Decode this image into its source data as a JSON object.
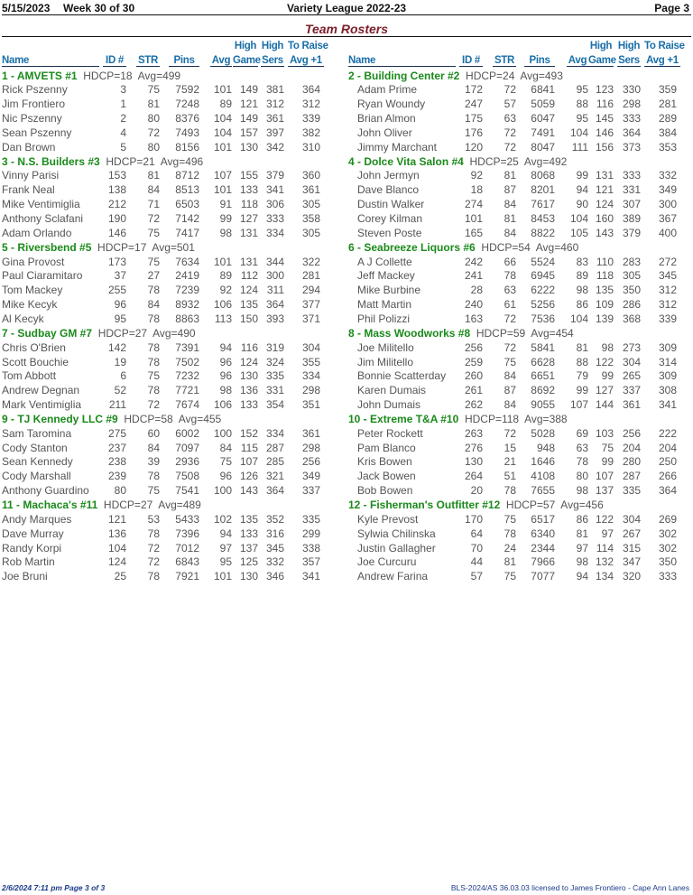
{
  "header": {
    "date": "5/15/2023",
    "week": "Week 30 of 30",
    "league": "Variety League 2022-23",
    "page": "Page 3"
  },
  "title": "Team Rosters",
  "columns": {
    "name": "Name",
    "id": "ID #",
    "str": "STR",
    "pins": "Pins",
    "avg": "Avg",
    "high1": "High",
    "game": "Game",
    "high2": "High",
    "sers": "Sers",
    "raise1": "To Raise",
    "raise2": "Avg +1"
  },
  "left_teams": [
    {
      "name": "1 - AMVETS #1",
      "info": "HDCP=18  Avg=499",
      "players": [
        [
          "Rick Pszenny",
          "3",
          "75",
          "7592",
          "101",
          "149",
          "381",
          "364"
        ],
        [
          "Jim Frontiero",
          "1",
          "81",
          "7248",
          "89",
          "121",
          "312",
          "312"
        ],
        [
          "Nic Pszenny",
          "2",
          "80",
          "8376",
          "104",
          "149",
          "361",
          "339"
        ],
        [
          "Sean Pszenny",
          "4",
          "72",
          "7493",
          "104",
          "157",
          "397",
          "382"
        ],
        [
          "Dan Brown",
          "5",
          "80",
          "8156",
          "101",
          "130",
          "342",
          "310"
        ]
      ]
    },
    {
      "name": "3 - N.S. Builders #3",
      "info": "HDCP=21  Avg=496",
      "players": [
        [
          "Vinny Parisi",
          "153",
          "81",
          "8712",
          "107",
          "155",
          "379",
          "360"
        ],
        [
          "Frank Neal",
          "138",
          "84",
          "8513",
          "101",
          "133",
          "341",
          "361"
        ],
        [
          "Mike Ventimiglia",
          "212",
          "71",
          "6503",
          "91",
          "118",
          "306",
          "305"
        ],
        [
          "Anthony Sclafani",
          "190",
          "72",
          "7142",
          "99",
          "127",
          "333",
          "358"
        ],
        [
          "Adam Orlando",
          "146",
          "75",
          "7417",
          "98",
          "131",
          "334",
          "305"
        ]
      ]
    },
    {
      "name": "5 - Riversbend #5",
      "info": "HDCP=17  Avg=501",
      "players": [
        [
          "Gina Provost",
          "173",
          "75",
          "7634",
          "101",
          "131",
          "344",
          "322"
        ],
        [
          "Paul Ciaramitaro",
          "37",
          "27",
          "2419",
          "89",
          "112",
          "300",
          "281"
        ],
        [
          "Tom Mackey",
          "255",
          "78",
          "7239",
          "92",
          "124",
          "311",
          "294"
        ],
        [
          "Mike Kecyk",
          "96",
          "84",
          "8932",
          "106",
          "135",
          "364",
          "377"
        ],
        [
          "Al Kecyk",
          "95",
          "78",
          "8863",
          "113",
          "150",
          "393",
          "371"
        ]
      ]
    },
    {
      "name": "7 - Sudbay GM #7",
      "info": "HDCP=27  Avg=490",
      "players": [
        [
          "Chris O'Brien",
          "142",
          "78",
          "7391",
          "94",
          "116",
          "319",
          "304"
        ],
        [
          "Scott Bouchie",
          "19",
          "78",
          "7502",
          "96",
          "124",
          "324",
          "355"
        ],
        [
          "Tom Abbott",
          "6",
          "75",
          "7232",
          "96",
          "130",
          "335",
          "334"
        ],
        [
          "Andrew Degnan",
          "52",
          "78",
          "7721",
          "98",
          "136",
          "331",
          "298"
        ],
        [
          "Mark Ventimiglia",
          "211",
          "72",
          "7674",
          "106",
          "133",
          "354",
          "351"
        ]
      ]
    },
    {
      "name": "9 - TJ Kennedy LLC #9",
      "info": "HDCP=58  Avg=455",
      "players": [
        [
          "Sam Taromina",
          "275",
          "60",
          "6002",
          "100",
          "152",
          "334",
          "361"
        ],
        [
          "Cody Stanton",
          "237",
          "84",
          "7097",
          "84",
          "115",
          "287",
          "298"
        ],
        [
          "Sean Kennedy",
          "238",
          "39",
          "2936",
          "75",
          "107",
          "285",
          "256"
        ],
        [
          "Cody Marshall",
          "239",
          "78",
          "7508",
          "96",
          "126",
          "321",
          "349"
        ],
        [
          "Anthony Guardino",
          "80",
          "75",
          "7541",
          "100",
          "143",
          "364",
          "337"
        ]
      ]
    },
    {
      "name": "11 - Machaca's #11",
      "info": "HDCP=27  Avg=489",
      "players": [
        [
          "Andy Marques",
          "121",
          "53",
          "5433",
          "102",
          "135",
          "352",
          "335"
        ],
        [
          "Dave Murray",
          "136",
          "78",
          "7396",
          "94",
          "133",
          "316",
          "299"
        ],
        [
          "Randy Korpi",
          "104",
          "72",
          "7012",
          "97",
          "137",
          "345",
          "338"
        ],
        [
          "Rob Martin",
          "124",
          "72",
          "6843",
          "95",
          "125",
          "332",
          "357"
        ],
        [
          "Joe Bruni",
          "25",
          "78",
          "7921",
          "101",
          "130",
          "346",
          "341"
        ]
      ]
    }
  ],
  "right_teams": [
    {
      "name": "2 - Building Center #2",
      "info": "HDCP=24  Avg=493",
      "players": [
        [
          "Adam Prime",
          "172",
          "72",
          "6841",
          "95",
          "123",
          "330",
          "359"
        ],
        [
          "Ryan Woundy",
          "247",
          "57",
          "5059",
          "88",
          "116",
          "298",
          "281"
        ],
        [
          "Brian Almon",
          "175",
          "63",
          "6047",
          "95",
          "145",
          "333",
          "289"
        ],
        [
          "John Oliver",
          "176",
          "72",
          "7491",
          "104",
          "146",
          "364",
          "384"
        ],
        [
          "Jimmy Marchant",
          "120",
          "72",
          "8047",
          "111",
          "156",
          "373",
          "353"
        ]
      ]
    },
    {
      "name": "4 - Dolce Vita Salon #4",
      "info": "HDCP=25  Avg=492",
      "players": [
        [
          "John Jermyn",
          "92",
          "81",
          "8068",
          "99",
          "131",
          "333",
          "332"
        ],
        [
          "Dave Blanco",
          "18",
          "87",
          "8201",
          "94",
          "121",
          "331",
          "349"
        ],
        [
          "Dustin Walker",
          "274",
          "84",
          "7617",
          "90",
          "124",
          "307",
          "300"
        ],
        [
          "Corey Kilman",
          "101",
          "81",
          "8453",
          "104",
          "160",
          "389",
          "367"
        ],
        [
          "Steven Poste",
          "165",
          "84",
          "8822",
          "105",
          "143",
          "379",
          "400"
        ]
      ]
    },
    {
      "name": "6 - Seabreeze Liquors #6",
      "info": "HDCP=54  Avg=460",
      "players": [
        [
          "A J Collette",
          "242",
          "66",
          "5524",
          "83",
          "110",
          "283",
          "272"
        ],
        [
          "Jeff Mackey",
          "241",
          "78",
          "6945",
          "89",
          "118",
          "305",
          "345"
        ],
        [
          "Mike Burbine",
          "28",
          "63",
          "6222",
          "98",
          "135",
          "350",
          "312"
        ],
        [
          "Matt Martin",
          "240",
          "61",
          "5256",
          "86",
          "109",
          "286",
          "312"
        ],
        [
          "Phil Polizzi",
          "163",
          "72",
          "7536",
          "104",
          "139",
          "368",
          "339"
        ]
      ]
    },
    {
      "name": "8 - Mass Woodworks #8",
      "info": "HDCP=59  Avg=454",
      "players": [
        [
          "Joe Militello",
          "256",
          "72",
          "5841",
          "81",
          "98",
          "273",
          "309"
        ],
        [
          "Jim Militello",
          "259",
          "75",
          "6628",
          "88",
          "122",
          "304",
          "314"
        ],
        [
          "Bonnie Scatterday",
          "260",
          "84",
          "6651",
          "79",
          "99",
          "265",
          "309"
        ],
        [
          "Karen Dumais",
          "261",
          "87",
          "8692",
          "99",
          "127",
          "337",
          "308"
        ],
        [
          "John Dumais",
          "262",
          "84",
          "9055",
          "107",
          "144",
          "361",
          "341"
        ]
      ]
    },
    {
      "name": "10 - Extreme T&A #10",
      "info": "HDCP=118  Avg=388",
      "players": [
        [
          "Peter Rockett",
          "263",
          "72",
          "5028",
          "69",
          "103",
          "256",
          "222"
        ],
        [
          "Pam Blanco",
          "276",
          "15",
          "948",
          "63",
          "75",
          "204",
          "204"
        ],
        [
          "Kris Bowen",
          "130",
          "21",
          "1646",
          "78",
          "99",
          "280",
          "250"
        ],
        [
          "Jack Bowen",
          "264",
          "51",
          "4108",
          "80",
          "107",
          "287",
          "266"
        ],
        [
          "Bob Bowen",
          "20",
          "78",
          "7655",
          "98",
          "137",
          "335",
          "364"
        ]
      ]
    },
    {
      "name": "12 - Fisherman's Outfitter #12",
      "info": "HDCP=57  Avg=456",
      "players": [
        [
          "Kyle Prevost",
          "170",
          "75",
          "6517",
          "86",
          "122",
          "304",
          "269"
        ],
        [
          "Sylwia Chilinska",
          "64",
          "78",
          "6340",
          "81",
          "97",
          "267",
          "302"
        ],
        [
          "Justin Gallagher",
          "70",
          "24",
          "2344",
          "97",
          "114",
          "315",
          "302"
        ],
        [
          "Joe Curcuru",
          "44",
          "81",
          "7966",
          "98",
          "132",
          "347",
          "350"
        ],
        [
          "Andrew Farina",
          "57",
          "75",
          "7077",
          "94",
          "134",
          "320",
          "333"
        ]
      ]
    }
  ],
  "footer": {
    "left": "2/6/2024  7:11 pm  Page 3 of 3",
    "right": "BLS-2024/AS 36.03.03 licensed to James Frontiero - Cape Ann Lanes"
  }
}
